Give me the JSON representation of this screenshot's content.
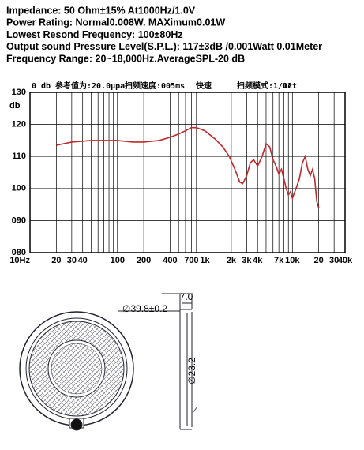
{
  "specs": [
    "Impedance: 50 Ohm±15%  At1000Hz/1.0V",
    "Power Rating: Normal0.008W. MAXimum0.01W",
    "Lowest Resond Frequency: 100±80Hz",
    "Output sound Pressure Level(S.P.L.): 117±3dB /0.001Watt 0.01Meter",
    "Frequency Range: 20~18,000Hz.AverageSPL-20 dB"
  ],
  "chart_data": {
    "type": "line",
    "ylabel": "db",
    "annotations": [
      "0 db",
      "参考值为:20.0μpa",
      "扫频速度:005ms",
      "快速",
      "扫频模式:1/12",
      "Oct"
    ],
    "x": [
      20,
      30,
      50,
      100,
      150,
      200,
      300,
      400,
      500,
      600,
      700,
      800,
      1000,
      1300,
      1600,
      1900,
      2200,
      2500,
      2700,
      3000,
      3300,
      3600,
      4000,
      4500,
      5000,
      5500,
      6000,
      6500,
      7000,
      7500,
      8000,
      8500,
      9000,
      9500,
      10000,
      11000,
      12000,
      13000,
      14000,
      15000,
      16000,
      17000,
      18000,
      19000,
      20000
    ],
    "series": [
      {
        "name": "SPL",
        "color": "#c0282a",
        "values": [
          113.5,
          114.5,
          115,
          115,
          114.5,
          114.5,
          115,
          116,
          117,
          118,
          119,
          119,
          118,
          115.5,
          113,
          110,
          106,
          102,
          101.5,
          104,
          108,
          109,
          107,
          110,
          114,
          113,
          109,
          107,
          104.5,
          106,
          103,
          100,
          98,
          99,
          97,
          100,
          103,
          108,
          110,
          106,
          104,
          106,
          103,
          96,
          94
        ]
      }
    ],
    "xlog": true,
    "xlim": [
      10,
      40000
    ],
    "ylim": [
      80,
      130
    ],
    "xticks": [
      {
        "value": 10,
        "label": "10Hz"
      },
      20,
      30,
      40,
      100,
      200,
      400,
      700,
      {
        "value": 1000,
        "label": "1k"
      },
      {
        "value": 2000,
        "label": "2k"
      },
      {
        "value": 3000,
        "label": "3k"
      },
      {
        "value": 4000,
        "label": "4k"
      },
      {
        "value": 7000,
        "label": "7k"
      },
      {
        "value": 10000,
        "label": "10k"
      },
      {
        "value": 20000,
        "label": "20"
      },
      {
        "value": 30000,
        "label": "30"
      },
      {
        "value": 40000,
        "label": "40k"
      }
    ],
    "xgrid": [
      10,
      20,
      30,
      40,
      50,
      60,
      70,
      80,
      90,
      100,
      200,
      300,
      400,
      500,
      600,
      700,
      800,
      900,
      1000,
      2000,
      3000,
      4000,
      5000,
      6000,
      7000,
      8000,
      9000,
      10000,
      20000,
      30000,
      40000
    ],
    "yticks": [
      {
        "value": 80,
        "label": "080"
      },
      {
        "value": 90,
        "label": "090"
      },
      100,
      110,
      120,
      130
    ],
    "grid": true
  },
  "drawing": {
    "thickness": "7.0",
    "outer_diameter": "∅39.8±0.2",
    "inner_diameter": "∅23.2"
  }
}
